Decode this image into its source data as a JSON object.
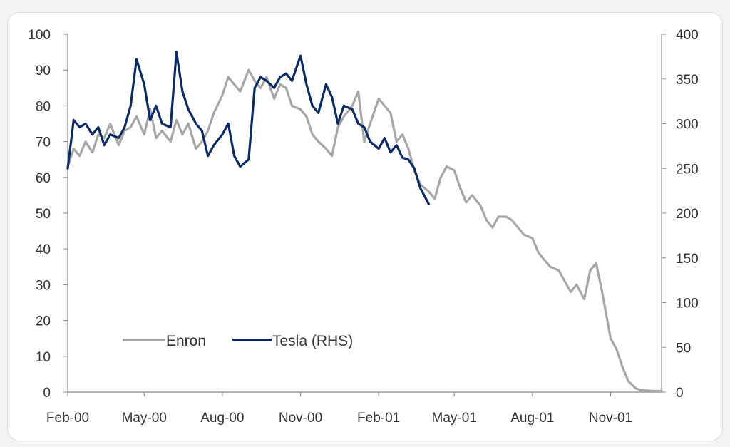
{
  "colors": {
    "enron": "#a6a6a6",
    "tesla": "#0e2a63",
    "axis": "#888888",
    "text": "#333333"
  },
  "chart_data": {
    "type": "line",
    "title": "",
    "xlabel": "",
    "ylabel": "",
    "y2label": "",
    "grid": false,
    "legend_position": "bottom-left",
    "xlim": [
      "2000-02-01",
      "2001-12-31"
    ],
    "ylim": [
      0,
      100
    ],
    "y2lim": [
      0,
      400
    ],
    "x_tick_labels": [
      "Feb-00",
      "May-00",
      "Aug-00",
      "Nov-00",
      "Feb-01",
      "May-01",
      "Aug-01",
      "Nov-01"
    ],
    "x_ticks": [
      "2000-02-01",
      "2000-05-01",
      "2000-08-01",
      "2000-11-01",
      "2001-02-01",
      "2001-05-01",
      "2001-08-01",
      "2001-11-01"
    ],
    "y_ticks": [
      "0",
      "10",
      "20",
      "30",
      "40",
      "50",
      "60",
      "70",
      "80",
      "90",
      "100"
    ],
    "y2_ticks": [
      "0",
      "50",
      "100",
      "150",
      "200",
      "250",
      "300",
      "350",
      "400"
    ],
    "series": [
      {
        "name": "Enron",
        "axis": "left",
        "x": [
          "2000-02-01",
          "2000-02-08",
          "2000-02-15",
          "2000-02-22",
          "2000-03-01",
          "2000-03-08",
          "2000-03-15",
          "2000-03-22",
          "2000-04-01",
          "2000-04-08",
          "2000-04-15",
          "2000-04-22",
          "2000-05-01",
          "2000-05-08",
          "2000-05-15",
          "2000-05-22",
          "2000-06-01",
          "2000-06-08",
          "2000-06-15",
          "2000-06-22",
          "2000-07-01",
          "2000-07-08",
          "2000-07-15",
          "2000-07-22",
          "2000-08-01",
          "2000-08-08",
          "2000-08-15",
          "2000-08-22",
          "2000-09-01",
          "2000-09-08",
          "2000-09-15",
          "2000-09-22",
          "2000-10-01",
          "2000-10-08",
          "2000-10-15",
          "2000-10-22",
          "2000-11-01",
          "2000-11-08",
          "2000-11-15",
          "2000-11-22",
          "2000-12-01",
          "2000-12-08",
          "2000-12-15",
          "2000-12-22",
          "2001-01-01",
          "2001-01-08",
          "2001-01-15",
          "2001-01-22",
          "2001-02-01",
          "2001-02-08",
          "2001-02-15",
          "2001-02-22",
          "2001-03-01",
          "2001-03-08",
          "2001-03-15",
          "2001-03-22",
          "2001-04-01",
          "2001-04-08",
          "2001-04-15",
          "2001-04-22",
          "2001-05-01",
          "2001-05-08",
          "2001-05-15",
          "2001-05-22",
          "2001-06-01",
          "2001-06-08",
          "2001-06-15",
          "2001-06-22",
          "2001-07-01",
          "2001-07-08",
          "2001-07-15",
          "2001-07-22",
          "2001-08-01",
          "2001-08-08",
          "2001-08-15",
          "2001-08-22",
          "2001-09-01",
          "2001-09-08",
          "2001-09-15",
          "2001-09-22",
          "2001-10-01",
          "2001-10-08",
          "2001-10-15",
          "2001-10-22",
          "2001-11-01",
          "2001-11-08",
          "2001-11-15",
          "2001-11-22",
          "2001-12-01",
          "2001-12-08",
          "2001-12-15",
          "2001-12-22",
          "2001-12-31"
        ],
        "values": [
          63,
          68,
          66,
          70,
          67,
          72,
          71,
          75,
          69,
          73,
          74,
          77,
          72,
          79,
          71,
          73,
          70,
          76,
          72,
          75,
          68,
          70,
          73,
          78,
          83,
          88,
          86,
          84,
          90,
          87,
          85,
          88,
          82,
          86,
          85,
          80,
          79,
          77,
          72,
          70,
          68,
          66,
          74,
          77,
          80,
          84,
          70,
          75,
          82,
          80,
          78,
          70,
          72,
          68,
          62,
          58,
          56,
          54,
          60,
          63,
          62,
          57,
          53,
          55,
          52,
          48,
          46,
          49,
          49,
          48,
          46,
          44,
          43,
          39,
          37,
          35,
          34,
          31,
          28,
          30,
          26,
          34,
          36,
          28,
          15,
          12,
          7,
          3,
          1,
          0.5,
          0.4,
          0.3,
          0.3
        ]
      },
      {
        "name": "Tesla (RHS)",
        "axis": "right",
        "x": [
          "2000-02-01",
          "2000-02-08",
          "2000-02-15",
          "2000-02-22",
          "2000-03-01",
          "2000-03-08",
          "2000-03-15",
          "2000-03-22",
          "2000-04-01",
          "2000-04-08",
          "2000-04-15",
          "2000-04-22",
          "2000-05-01",
          "2000-05-08",
          "2000-05-15",
          "2000-05-22",
          "2000-06-01",
          "2000-06-08",
          "2000-06-15",
          "2000-06-22",
          "2000-07-01",
          "2000-07-08",
          "2000-07-15",
          "2000-07-22",
          "2000-08-01",
          "2000-08-08",
          "2000-08-15",
          "2000-08-22",
          "2000-09-01",
          "2000-09-08",
          "2000-09-15",
          "2000-09-22",
          "2000-10-01",
          "2000-10-08",
          "2000-10-15",
          "2000-10-22",
          "2000-11-01",
          "2000-11-08",
          "2000-11-15",
          "2000-11-22",
          "2000-12-01",
          "2000-12-08",
          "2000-12-15",
          "2000-12-22",
          "2001-01-01",
          "2001-01-08",
          "2001-01-15",
          "2001-01-22",
          "2001-02-01",
          "2001-02-08",
          "2001-02-15",
          "2001-02-22",
          "2001-03-01",
          "2001-03-08",
          "2001-03-15",
          "2001-03-22",
          "2001-04-01"
        ],
        "values": [
          250,
          304,
          296,
          300,
          288,
          296,
          276,
          288,
          284,
          296,
          320,
          372,
          344,
          304,
          320,
          300,
          296,
          380,
          336,
          316,
          300,
          292,
          264,
          276,
          288,
          300,
          264,
          252,
          260,
          340,
          352,
          348,
          340,
          352,
          356,
          348,
          376,
          344,
          320,
          312,
          344,
          330,
          300,
          320,
          316,
          300,
          296,
          280,
          272,
          284,
          268,
          276,
          262,
          260,
          250,
          228,
          210
        ]
      }
    ]
  }
}
